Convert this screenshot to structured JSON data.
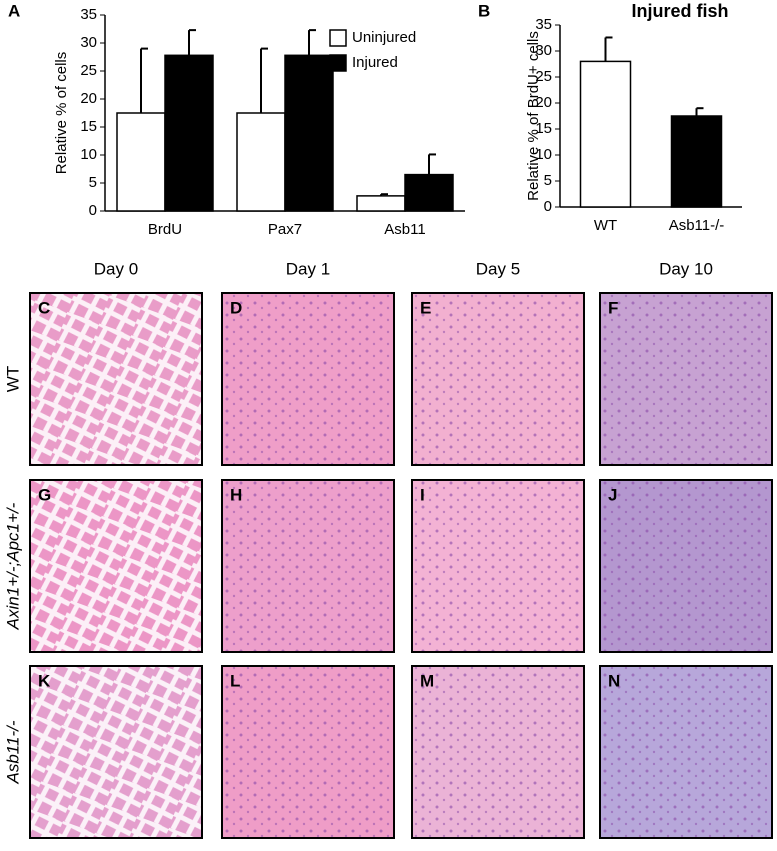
{
  "chart_data": [
    {
      "type": "bar",
      "panel_label": "A",
      "y_label": "Relative % of cells",
      "categories": [
        "BrdU",
        "Pax7",
        "Asb11"
      ],
      "series": [
        {
          "name": "Uninjured",
          "color": "#ffffff",
          "values": [
            17.5,
            17.5,
            2.7
          ],
          "errors": [
            11.5,
            11.5,
            0.3
          ]
        },
        {
          "name": "Injured",
          "color": "#000000",
          "values": [
            27.8,
            27.8,
            6.5
          ],
          "errors": [
            4.5,
            4.5,
            3.6
          ]
        }
      ],
      "ylim": [
        0,
        35
      ],
      "yticks": [
        0,
        5,
        10,
        15,
        20,
        25,
        30,
        35
      ],
      "legend": "upper right"
    },
    {
      "type": "bar",
      "panel_label": "B",
      "title": "Injured fish",
      "y_label": "Relative % of BrdU+ cells",
      "categories": [
        "WT",
        "Asb11-/-"
      ],
      "values": [
        28,
        17.5
      ],
      "errors": [
        4.6,
        1.5
      ],
      "colors": [
        "#ffffff",
        "#000000"
      ],
      "ylim": [
        0,
        35
      ],
      "yticks": [
        0,
        5,
        10,
        15,
        20,
        25,
        30,
        35
      ]
    }
  ],
  "micrographs": {
    "columns": [
      "Day 0",
      "Day 1",
      "Day 5",
      "Day 10"
    ],
    "rows": [
      {
        "label": "WT",
        "panels": [
          "C",
          "D",
          "E",
          "F"
        ]
      },
      {
        "label": "Axin1+/-;Apc1+/-",
        "panels": [
          "G",
          "H",
          "I",
          "J"
        ]
      },
      {
        "label": "Asb11-/-",
        "panels": [
          "K",
          "L",
          "M",
          "N"
        ]
      }
    ]
  }
}
